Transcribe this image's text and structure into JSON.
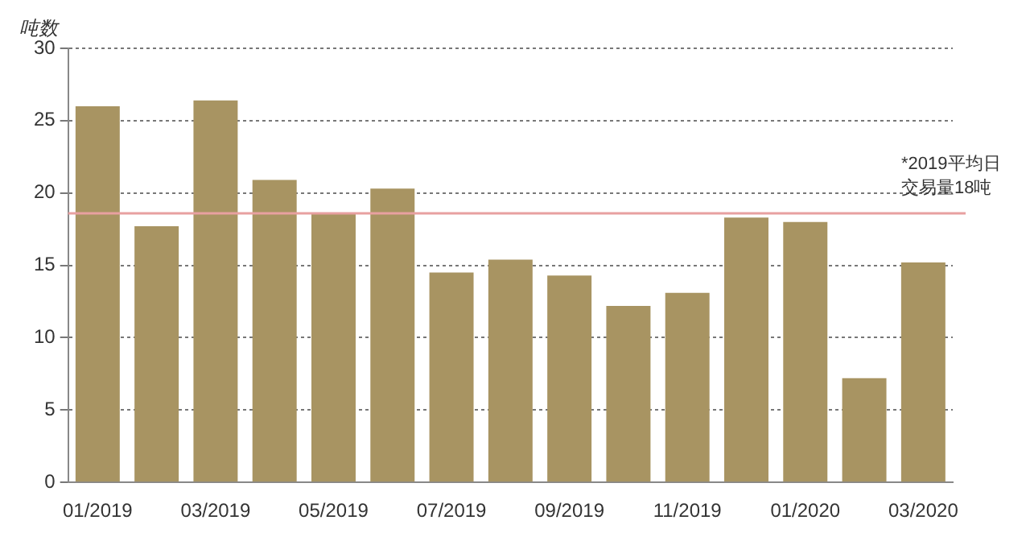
{
  "chart_data": {
    "type": "bar",
    "ylabel": "吨数",
    "categories": [
      "01/2019",
      null,
      "03/2019",
      null,
      "05/2019",
      null,
      "07/2019",
      null,
      "09/2019",
      null,
      "11/2019",
      null,
      "01/2020",
      null,
      "03/2020"
    ],
    "values": [
      26.0,
      17.7,
      26.4,
      20.9,
      18.6,
      20.3,
      14.5,
      15.4,
      14.3,
      12.2,
      13.1,
      18.3,
      18.0,
      7.2,
      15.2
    ],
    "color": "#a89462",
    "ylim": [
      0,
      30
    ],
    "yticks": [
      0,
      5,
      10,
      15,
      20,
      25,
      30
    ],
    "grid": "y",
    "ref_lines": [
      {
        "axis": "y",
        "value": 18.6,
        "label": "*2019平均日交易量18吨",
        "color": "#e8a0a0"
      }
    ]
  }
}
